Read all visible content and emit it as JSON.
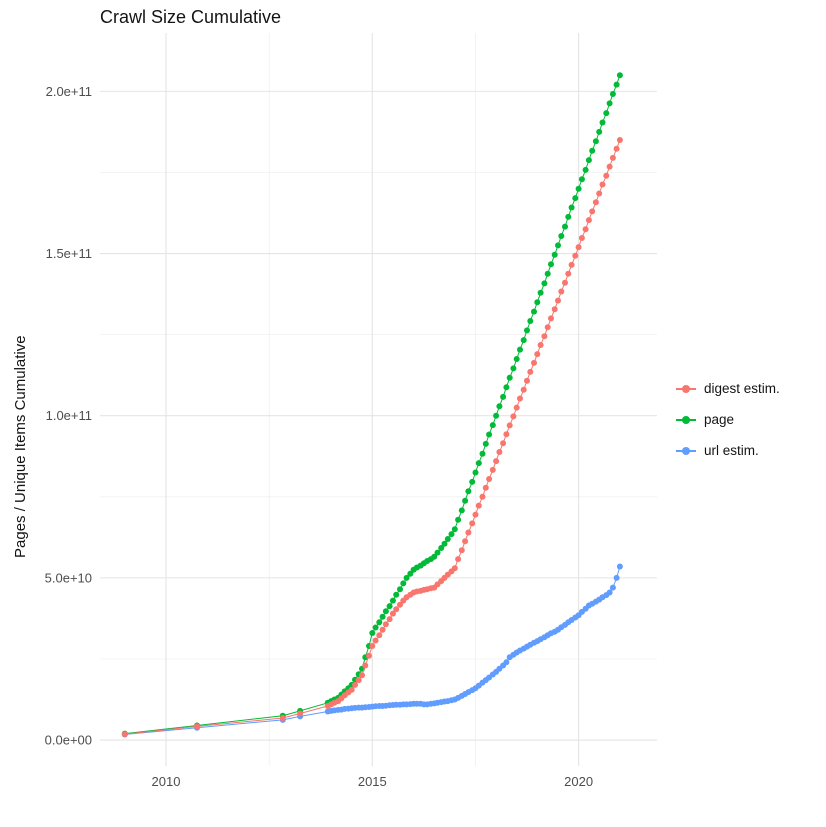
{
  "chart_data": {
    "type": "line",
    "title": "Crawl Size Cumulative",
    "xlabel": "",
    "ylabel": "Pages / Unique Items Cumulative",
    "legend_position": "right",
    "grid": true,
    "background": "#FFFFFF",
    "grid_major_color": "#E4E4E4",
    "grid_minor_color": "#F0F0F0",
    "tick_label_color": "#4D4D4D",
    "values_unit": "1e9",
    "xlim": [
      2008.4,
      2021.9
    ],
    "ylim_e9": [
      -8,
      218
    ],
    "x_ticks": [
      {
        "value": 2010,
        "label": "2010"
      },
      {
        "value": 2015,
        "label": "2015"
      },
      {
        "value": 2020,
        "label": "2020"
      }
    ],
    "x_minor": [
      2012.5,
      2017.5
    ],
    "y_ticks": [
      {
        "value_e9": 0,
        "label": "0.0e+00"
      },
      {
        "value_e9": 50,
        "label": "5.0e+10"
      },
      {
        "value_e9": 100,
        "label": "1.0e+11"
      },
      {
        "value_e9": 150,
        "label": "1.5e+11"
      },
      {
        "value_e9": 200,
        "label": "2.0e+11"
      }
    ],
    "y_minor_e9": [
      25,
      75,
      125,
      175
    ],
    "x": [
      2009.0,
      2010.75,
      2012.83,
      2013.25,
      2013.92,
      2014.0,
      2014.08,
      2014.17,
      2014.25,
      2014.33,
      2014.42,
      2014.5,
      2014.58,
      2014.67,
      2014.75,
      2014.83,
      2014.92,
      2015.0,
      2015.08,
      2015.17,
      2015.25,
      2015.33,
      2015.42,
      2015.5,
      2015.58,
      2015.67,
      2015.75,
      2015.83,
      2015.92,
      2016.0,
      2016.08,
      2016.17,
      2016.25,
      2016.33,
      2016.42,
      2016.5,
      2016.58,
      2016.67,
      2016.75,
      2016.83,
      2016.92,
      2017.0,
      2017.08,
      2017.17,
      2017.25,
      2017.33,
      2017.42,
      2017.5,
      2017.58,
      2017.67,
      2017.75,
      2017.83,
      2017.92,
      2018.0,
      2018.08,
      2018.17,
      2018.25,
      2018.33,
      2018.42,
      2018.5,
      2018.58,
      2018.67,
      2018.75,
      2018.83,
      2018.92,
      2019.0,
      2019.08,
      2019.17,
      2019.25,
      2019.33,
      2019.42,
      2019.5,
      2019.58,
      2019.67,
      2019.75,
      2019.83,
      2019.92,
      2020.0,
      2020.08,
      2020.17,
      2020.25,
      2020.33,
      2020.42,
      2020.5,
      2020.58,
      2020.67,
      2020.75,
      2020.83,
      2020.92,
      2021.0
    ],
    "series": [
      {
        "name": "digest estim.",
        "color": "#F8766D",
        "values_e9": [
          1.8,
          4.2,
          6.8,
          8.2,
          10.5,
          11.0,
          11.5,
          12.0,
          12.9,
          13.8,
          14.7,
          15.5,
          17.0,
          18.5,
          20.0,
          23.0,
          26.0,
          29.0,
          30.7,
          32.3,
          34.0,
          35.7,
          37.3,
          39.0,
          40.3,
          41.7,
          43.0,
          44.0,
          44.8,
          45.5,
          45.8,
          46.0,
          46.3,
          46.5,
          46.8,
          47.0,
          48.0,
          49.0,
          50.0,
          51.0,
          52.0,
          53.0,
          55.8,
          58.5,
          61.3,
          64.0,
          66.8,
          69.5,
          72.3,
          75.0,
          77.8,
          80.5,
          83.3,
          86.0,
          88.8,
          91.5,
          94.3,
          97.0,
          99.8,
          102.5,
          105.3,
          108.0,
          110.8,
          113.5,
          116.3,
          119.0,
          121.8,
          124.5,
          127.3,
          130.0,
          132.8,
          135.5,
          138.3,
          141.0,
          143.8,
          146.5,
          149.3,
          152.0,
          154.8,
          157.5,
          160.3,
          163.0,
          165.8,
          168.5,
          171.3,
          174.0,
          176.8,
          179.5,
          182.3,
          185.0
        ]
      },
      {
        "name": "page",
        "color": "#00BA38",
        "values_e9": [
          2.0,
          4.5,
          7.5,
          9.0,
          11.5,
          12.0,
          12.5,
          13.0,
          14.0,
          15.0,
          16.0,
          17.0,
          18.6,
          20.3,
          22.0,
          25.5,
          29.0,
          33.0,
          34.7,
          36.3,
          38.0,
          39.7,
          41.3,
          43.0,
          44.8,
          46.5,
          48.3,
          50.0,
          51.3,
          52.5,
          53.2,
          53.8,
          54.5,
          55.2,
          55.8,
          56.5,
          57.8,
          59.2,
          60.5,
          62.0,
          63.5,
          65.0,
          67.9,
          70.8,
          73.8,
          76.7,
          79.6,
          82.5,
          85.4,
          88.3,
          91.3,
          94.2,
          97.1,
          100.0,
          102.9,
          105.8,
          108.8,
          111.7,
          114.6,
          117.5,
          120.4,
          123.3,
          126.3,
          129.2,
          132.1,
          135.0,
          137.9,
          140.8,
          143.8,
          146.7,
          149.6,
          152.5,
          155.4,
          158.3,
          161.3,
          164.2,
          167.1,
          170.0,
          172.9,
          175.8,
          178.8,
          181.7,
          184.6,
          187.5,
          190.4,
          193.3,
          196.3,
          199.2,
          202.1,
          205.0
        ]
      },
      {
        "name": "url estim.",
        "color": "#619CFF",
        "values_e9": [
          1.7,
          3.8,
          6.2,
          7.3,
          8.8,
          9.0,
          9.15,
          9.3,
          9.4,
          9.6,
          9.7,
          9.8,
          9.9,
          10.0,
          10.0,
          10.1,
          10.2,
          10.3,
          10.4,
          10.5,
          10.5,
          10.6,
          10.7,
          10.8,
          10.9,
          10.9,
          11.0,
          11.0,
          11.1,
          11.2,
          11.2,
          11.2,
          11.0,
          11.0,
          11.2,
          11.3,
          11.5,
          11.7,
          11.9,
          12.0,
          12.3,
          12.5,
          13.0,
          13.6,
          14.2,
          14.8,
          15.4,
          16.0,
          16.8,
          17.7,
          18.5,
          19.3,
          20.2,
          21.0,
          22.0,
          23.0,
          24.0,
          25.5,
          26.3,
          27.0,
          27.6,
          28.2,
          28.8,
          29.4,
          30.0,
          30.5,
          31.1,
          31.7,
          32.3,
          32.9,
          33.4,
          34.0,
          34.8,
          35.5,
          36.3,
          37.0,
          37.8,
          38.5,
          39.5,
          40.5,
          41.5,
          42.0,
          42.7,
          43.3,
          44.0,
          44.7,
          45.5,
          47.0,
          50.0,
          53.5
        ]
      }
    ]
  }
}
